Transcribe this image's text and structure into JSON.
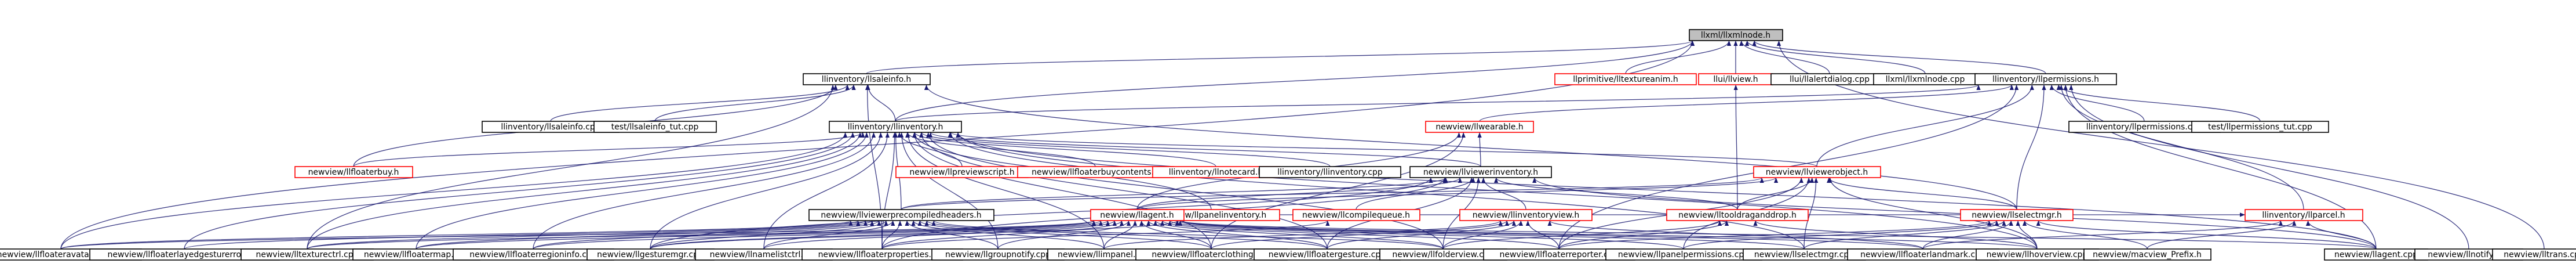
{
  "colors": {
    "root_fill": "#bfbfbf",
    "root_border": "#000000",
    "node_border": "#000000",
    "edge": "#191970",
    "highlight_border": "#ff0000",
    "background": "#ffffff"
  },
  "graph": {
    "nodes": [
      {
        "id": "llxmltreenode_h",
        "label": "llxml/llxmlnode.h",
        "root": true
      },
      {
        "id": "llinventory_llsaleinfo_h",
        "label": "llinventory/llsaleinfo.h"
      },
      {
        "id": "llprimitive_lltextureanim_h",
        "label": "llprimitive/lltextureanim.h",
        "highlight": true
      },
      {
        "id": "llui_llview_h",
        "label": "llui/llview.h",
        "highlight": true
      },
      {
        "id": "llui_llalertdialog_cpp",
        "label": "llui/llalertdialog.cpp"
      },
      {
        "id": "llxml_llxmlnode_cpp",
        "label": "llxml/llxmlnode.cpp"
      },
      {
        "id": "llinventory_llpermissions_h",
        "label": "llinventory/llpermissions.h"
      },
      {
        "id": "llinventory_llsaleinfo_cpp",
        "label": "llinventory/llsaleinfo.cpp"
      },
      {
        "id": "test_llsaleinfo_tut_cpp",
        "label": "test/llsaleinfo_tut.cpp"
      },
      {
        "id": "llinventory_llpermissions_cpp",
        "label": "llinventory/llpermissions.cpp"
      },
      {
        "id": "test_llpermissions_tut_cpp",
        "label": "test/llpermissions_tut.cpp"
      },
      {
        "id": "llinventory_llinventory_h",
        "label": "llinventory/llinventory.h"
      },
      {
        "id": "newview_llwearable_h",
        "label": "newview/llwearable.h",
        "highlight": true
      },
      {
        "id": "newview_llfloaterbuy_h",
        "label": "newview/llfloaterbuy.h",
        "highlight": true
      },
      {
        "id": "newview_llpreviewscript_h",
        "label": "newview/llpreviewscript.h",
        "highlight": true
      },
      {
        "id": "newview_llfloaterbuycontents_h",
        "label": "newview/llfloaterbuycontents.h",
        "highlight": true
      },
      {
        "id": "llinventory_llnotecard_h",
        "label": "llinventory/llnotecard.h",
        "highlight": true
      },
      {
        "id": "llinventory_llinventory_cpp",
        "label": "llinventory/llinventory.cpp"
      },
      {
        "id": "newview_llviewerinventory_h",
        "label": "newview/llviewerinventory.h"
      },
      {
        "id": "newview_llviewerobject_h",
        "label": "newview/llviewerobject.h",
        "highlight": true
      },
      {
        "id": "llinventory_llparcel_h",
        "label": "llinventory/llparcel.h",
        "highlight": true
      },
      {
        "id": "newview_llpanelinventory_h",
        "label": "newview/llpanelinventory.h",
        "highlight": true
      },
      {
        "id": "newview_llcompilequeue_h",
        "label": "newview/llcompilequeue.h",
        "highlight": true
      },
      {
        "id": "newview_lltooldraganddrop_h",
        "label": "newview/lltooldraganddrop.h",
        "highlight": true
      },
      {
        "id": "newview_llviewerprecompiledheaders_h",
        "label": "newview/llviewerprecompiledheaders.h"
      },
      {
        "id": "newview_llagent_h",
        "label": "newview/llagent.h",
        "highlight": true
      },
      {
        "id": "newview_llinventoryview_h",
        "label": "newview/llinventoryview.h",
        "highlight": true
      },
      {
        "id": "newview_llselectmgr_h",
        "label": "newview/llselectmgr.h",
        "highlight": true
      },
      {
        "id": "newview_llfloateravatarinfo_cpp",
        "label": "newview/llfloateravatarinfo.cpp"
      },
      {
        "id": "newview_llfloaterlayedgesturerror_cpp",
        "label": "newview/llfloaterlayedgesturerror.cpp"
      },
      {
        "id": "newview_lltexturectrl_cpp",
        "label": "newview/lltexturectrl.cpp"
      },
      {
        "id": "newview_llfloatermap_cpp",
        "label": "newview/llfloatermap.cpp"
      },
      {
        "id": "newview_llfloaterregioninfo_cpp",
        "label": "newview/llfloaterregioninfo.cpp"
      },
      {
        "id": "newview_llgesturemgr_cpp",
        "label": "newview/llgesturemgr.cpp"
      },
      {
        "id": "newview_llnamelistctrl_cpp",
        "label": "newview/llnamelistctrl.cpp"
      },
      {
        "id": "newview_llfloaterproperties_cpp",
        "label": "newview/llfloaterproperties.cpp"
      },
      {
        "id": "newview_llgroupnotify_cpp",
        "label": "newview/llgroupnotify.cpp"
      },
      {
        "id": "newview_llimpanel_cpp",
        "label": "newview/llimpanel.cpp"
      },
      {
        "id": "newview_llfloaterclothing_cpp",
        "label": "newview/llfloaterclothing.cpp"
      },
      {
        "id": "newview_llfloatergesture_cpp",
        "label": "newview/llfloatergesture.cpp"
      },
      {
        "id": "newview_llfolderview_cpp",
        "label": "newview/llfolderview.cpp"
      },
      {
        "id": "newview_llfloaterreporter_cpp",
        "label": "newview/llfloaterreporter.cpp"
      },
      {
        "id": "newview_llpanelpermissions_cpp",
        "label": "newview/llpanelpermissions.cpp"
      },
      {
        "id": "newview_llselectmgr_cpp",
        "label": "newview/llselectmgr.cpp"
      },
      {
        "id": "newview_llfloaterlandmark_cpp",
        "label": "newview/llfloaterlandmark.cpp"
      },
      {
        "id": "newview_llhoverview_cpp",
        "label": "newview/llhoverview.cpp"
      },
      {
        "id": "newview_macview_prefix_h",
        "label": "newview/macview_Prefix.h"
      },
      {
        "id": "newview_llagent_cpp",
        "label": "newview/llagent.cpp"
      },
      {
        "id": "newview_llnotify_cpp",
        "label": "newview/llnotify.cpp"
      },
      {
        "id": "newview_lltrans_cpp",
        "label": "newview/lltrans.cpp"
      }
    ],
    "edges": [
      [
        "llinventory_llsaleinfo_h",
        "llxmltreenode_h"
      ],
      [
        "llprimitive_lltextureanim_h",
        "llxmltreenode_h"
      ],
      [
        "llui_llview_h",
        "llxmltreenode_h"
      ],
      [
        "llui_llalertdialog_cpp",
        "llxmltreenode_h"
      ],
      [
        "llxml_llxmlnode_cpp",
        "llxmltreenode_h"
      ],
      [
        "llinventory_llpermissions_h",
        "llxmltreenode_h"
      ],
      [
        "llinventory_llinventory_h",
        "llxmltreenode_h"
      ],
      [
        "newview_lltrans_cpp",
        "llxmltreenode_h"
      ],
      [
        "newview_llfloateravatarinfo_cpp",
        "llxmltreenode_h"
      ],
      [
        "llinventory_llsaleinfo_cpp",
        "llinventory_llsaleinfo_h"
      ],
      [
        "test_llsaleinfo_tut_cpp",
        "llinventory_llsaleinfo_h"
      ],
      [
        "llinventory_llinventory_h",
        "llinventory_llsaleinfo_h"
      ],
      [
        "newview_llfloaterbuy_h",
        "llinventory_llsaleinfo_h"
      ],
      [
        "newview_lltexturectrl_cpp",
        "llinventory_llsaleinfo_h"
      ],
      [
        "newview_llselectmgr_h",
        "llinventory_llsaleinfo_h"
      ],
      [
        "newview_llfloaterproperties_cpp",
        "llinventory_llsaleinfo_h"
      ],
      [
        "llinventory_llpermissions_cpp",
        "llinventory_llpermissions_h"
      ],
      [
        "test_llpermissions_tut_cpp",
        "llinventory_llpermissions_h"
      ],
      [
        "llinventory_llinventory_h",
        "llinventory_llpermissions_h"
      ],
      [
        "newview_llwearable_h",
        "llinventory_llpermissions_h"
      ],
      [
        "llinventory_llparcel_h",
        "llinventory_llpermissions_h"
      ],
      [
        "newview_llselectmgr_h",
        "llinventory_llpermissions_h"
      ],
      [
        "newview_llviewerobject_h",
        "llinventory_llpermissions_h"
      ],
      [
        "newview_llagent_cpp",
        "llinventory_llpermissions_h"
      ],
      [
        "newview_llnotify_cpp",
        "llinventory_llpermissions_h"
      ],
      [
        "newview_llfloaterreporter_cpp",
        "llinventory_llpermissions_h"
      ],
      [
        "newview_lltooldraganddrop_h",
        "llui_llview_h"
      ],
      [
        "newview_llfloaterbuy_h",
        "llinventory_llinventory_h"
      ],
      [
        "newview_llpreviewscript_h",
        "llinventory_llinventory_h"
      ],
      [
        "newview_llfloaterbuycontents_h",
        "llinventory_llinventory_h"
      ],
      [
        "llinventory_llnotecard_h",
        "llinventory_llinventory_h"
      ],
      [
        "llinventory_llinventory_cpp",
        "llinventory_llinventory_h"
      ],
      [
        "newview_llviewerinventory_h",
        "llinventory_llinventory_h"
      ],
      [
        "newview_llviewerobject_h",
        "llinventory_llinventory_h"
      ],
      [
        "newview_llviewerprecompiledheaders_h",
        "llinventory_llinventory_h"
      ],
      [
        "newview_llpanelinventory_h",
        "llinventory_llinventory_h"
      ],
      [
        "newview_llfloateravatarinfo_cpp",
        "llinventory_llinventory_h"
      ],
      [
        "newview_llfloaterlayedgesturerror_cpp",
        "llinventory_llinventory_h"
      ],
      [
        "newview_lltexturectrl_cpp",
        "llinventory_llinventory_h"
      ],
      [
        "newview_llfloatermap_cpp",
        "llinventory_llinventory_h"
      ],
      [
        "newview_llfloaterregioninfo_cpp",
        "llinventory_llinventory_h"
      ],
      [
        "newview_llgesturemgr_cpp",
        "llinventory_llinventory_h"
      ],
      [
        "newview_llnamelistctrl_cpp",
        "llinventory_llinventory_h"
      ],
      [
        "newview_llfloaterproperties_cpp",
        "llinventory_llinventory_h"
      ],
      [
        "newview_llgroupnotify_cpp",
        "llinventory_llinventory_h"
      ],
      [
        "newview_llimpanel_cpp",
        "llinventory_llinventory_h"
      ],
      [
        "newview_llfloaterclothing_cpp",
        "llinventory_llinventory_h"
      ],
      [
        "newview_llfloatergesture_cpp",
        "llinventory_llinventory_h"
      ],
      [
        "newview_llfolderview_cpp",
        "llinventory_llinventory_h"
      ],
      [
        "newview_llselectmgr_cpp",
        "llinventory_llinventory_h"
      ],
      [
        "newview_llhoverview_cpp",
        "llinventory_llinventory_h"
      ],
      [
        "newview_llagent_cpp",
        "llinventory_llinventory_h"
      ],
      [
        "newview_llviewerinventory_h",
        "newview_llwearable_h"
      ],
      [
        "newview_llagent_h",
        "newview_llwearable_h"
      ],
      [
        "newview_llfloaterclothing_cpp",
        "newview_llwearable_h"
      ],
      [
        "newview_llviewerprecompiledheaders_h",
        "newview_llviewerinventory_h"
      ],
      [
        "newview_llagent_h",
        "newview_llviewerinventory_h"
      ],
      [
        "newview_llinventoryview_h",
        "newview_llviewerinventory_h"
      ],
      [
        "newview_llcompilequeue_h",
        "newview_llviewerinventory_h"
      ],
      [
        "newview_lltooldraganddrop_h",
        "newview_llviewerinventory_h"
      ],
      [
        "newview_llfloaterproperties_cpp",
        "newview_llviewerinventory_h"
      ],
      [
        "newview_llgesturemgr_cpp",
        "newview_llviewerinventory_h"
      ],
      [
        "newview_llfloatergesture_cpp",
        "newview_llviewerinventory_h"
      ],
      [
        "newview_llfolderview_cpp",
        "newview_llviewerinventory_h"
      ],
      [
        "newview_llagent_cpp",
        "newview_llviewerinventory_h"
      ],
      [
        "newview_llviewerprecompiledheaders_h",
        "newview_llviewerobject_h"
      ],
      [
        "newview_lltooldraganddrop_h",
        "newview_llviewerobject_h"
      ],
      [
        "newview_llselectmgr_h",
        "newview_llviewerobject_h"
      ],
      [
        "newview_llagent_h",
        "newview_llviewerobject_h"
      ],
      [
        "newview_llhoverview_cpp",
        "newview_llviewerobject_h"
      ],
      [
        "newview_llfloaterreporter_cpp",
        "newview_llviewerobject_h"
      ],
      [
        "newview_llpanelpermissions_cpp",
        "newview_llviewerobject_h"
      ],
      [
        "newview_llselectmgr_cpp",
        "newview_llviewerobject_h"
      ],
      [
        "newview_llagent_h",
        "llinventory_llparcel_h"
      ],
      [
        "newview_llfloaterlandmark_cpp",
        "llinventory_llparcel_h"
      ],
      [
        "newview_macview_prefix_h",
        "llinventory_llparcel_h"
      ],
      [
        "newview_llagent_cpp",
        "llinventory_llparcel_h"
      ],
      [
        "newview_llfloateravatarinfo_cpp",
        "newview_llviewerprecompiledheaders_h"
      ],
      [
        "newview_llfloaterlayedgesturerror_cpp",
        "newview_llviewerprecompiledheaders_h"
      ],
      [
        "newview_lltexturectrl_cpp",
        "newview_llviewerprecompiledheaders_h"
      ],
      [
        "newview_llfloatermap_cpp",
        "newview_llviewerprecompiledheaders_h"
      ],
      [
        "newview_llfloaterregioninfo_cpp",
        "newview_llviewerprecompiledheaders_h"
      ],
      [
        "newview_llgesturemgr_cpp",
        "newview_llviewerprecompiledheaders_h"
      ],
      [
        "newview_llnamelistctrl_cpp",
        "newview_llviewerprecompiledheaders_h"
      ],
      [
        "newview_llfloaterproperties_cpp",
        "newview_llviewerprecompiledheaders_h"
      ],
      [
        "newview_llgroupnotify_cpp",
        "newview_llviewerprecompiledheaders_h"
      ],
      [
        "newview_llimpanel_cpp",
        "newview_llviewerprecompiledheaders_h"
      ],
      [
        "newview_llfloaterclothing_cpp",
        "newview_llviewerprecompiledheaders_h"
      ],
      [
        "newview_llfloatergesture_cpp",
        "newview_llviewerprecompiledheaders_h"
      ],
      [
        "newview_llfolderview_cpp",
        "newview_llviewerprecompiledheaders_h"
      ],
      [
        "newview_llfloateravatarinfo_cpp",
        "newview_llagent_h"
      ],
      [
        "newview_lltexturectrl_cpp",
        "newview_llagent_h"
      ],
      [
        "newview_llfloatermap_cpp",
        "newview_llagent_h"
      ],
      [
        "newview_llfloaterregioninfo_cpp",
        "newview_llagent_h"
      ],
      [
        "newview_llgesturemgr_cpp",
        "newview_llagent_h"
      ],
      [
        "newview_llnamelistctrl_cpp",
        "newview_llagent_h"
      ],
      [
        "newview_llfloaterproperties_cpp",
        "newview_llagent_h"
      ],
      [
        "newview_llgroupnotify_cpp",
        "newview_llagent_h"
      ],
      [
        "newview_llimpanel_cpp",
        "newview_llagent_h"
      ],
      [
        "newview_llfloaterclothing_cpp",
        "newview_llagent_h"
      ],
      [
        "newview_llfloatergesture_cpp",
        "newview_llagent_h"
      ],
      [
        "newview_llfolderview_cpp",
        "newview_llagent_h"
      ],
      [
        "newview_llfloaterreporter_cpp",
        "newview_llagent_h"
      ],
      [
        "newview_llpanelpermissions_cpp",
        "newview_llagent_h"
      ],
      [
        "newview_llselectmgr_cpp",
        "newview_llagent_h"
      ],
      [
        "newview_llfloaterlandmark_cpp",
        "newview_llagent_h"
      ],
      [
        "newview_llhoverview_cpp",
        "newview_llagent_h"
      ],
      [
        "newview_llagent_cpp",
        "newview_llagent_h"
      ],
      [
        "newview_llimpanel_cpp",
        "newview_llinventoryview_h"
      ],
      [
        "newview_llfloaterclothing_cpp",
        "newview_llinventoryview_h"
      ],
      [
        "newview_llfloatergesture_cpp",
        "newview_llinventoryview_h"
      ],
      [
        "newview_llfolderview_cpp",
        "newview_llinventoryview_h"
      ],
      [
        "newview_llfloaterreporter_cpp",
        "newview_llinventoryview_h"
      ],
      [
        "newview_llfloaterlandmark_cpp",
        "newview_llinventoryview_h"
      ],
      [
        "newview_llfloaterreporter_cpp",
        "newview_llselectmgr_h"
      ],
      [
        "newview_llpanelpermissions_cpp",
        "newview_llselectmgr_h"
      ],
      [
        "newview_llselectmgr_cpp",
        "newview_llselectmgr_h"
      ],
      [
        "newview_llfloaterlandmark_cpp",
        "newview_llselectmgr_h"
      ],
      [
        "newview_llhoverview_cpp",
        "newview_llselectmgr_h"
      ],
      [
        "newview_macview_prefix_h",
        "newview_llselectmgr_h"
      ],
      [
        "newview_llagent_cpp",
        "newview_llselectmgr_h"
      ],
      [
        "newview_llfolderview_cpp",
        "newview_lltooldraganddrop_h"
      ],
      [
        "newview_llfloaterreporter_cpp",
        "newview_lltooldraganddrop_h"
      ],
      [
        "newview_llhoverview_cpp",
        "newview_lltooldraganddrop_h"
      ],
      [
        "newview_llgesturemgr_cpp",
        "newview_llpanelinventory_h"
      ],
      [
        "newview_llfloaterproperties_cpp",
        "newview_llcompilequeue_h"
      ]
    ]
  }
}
